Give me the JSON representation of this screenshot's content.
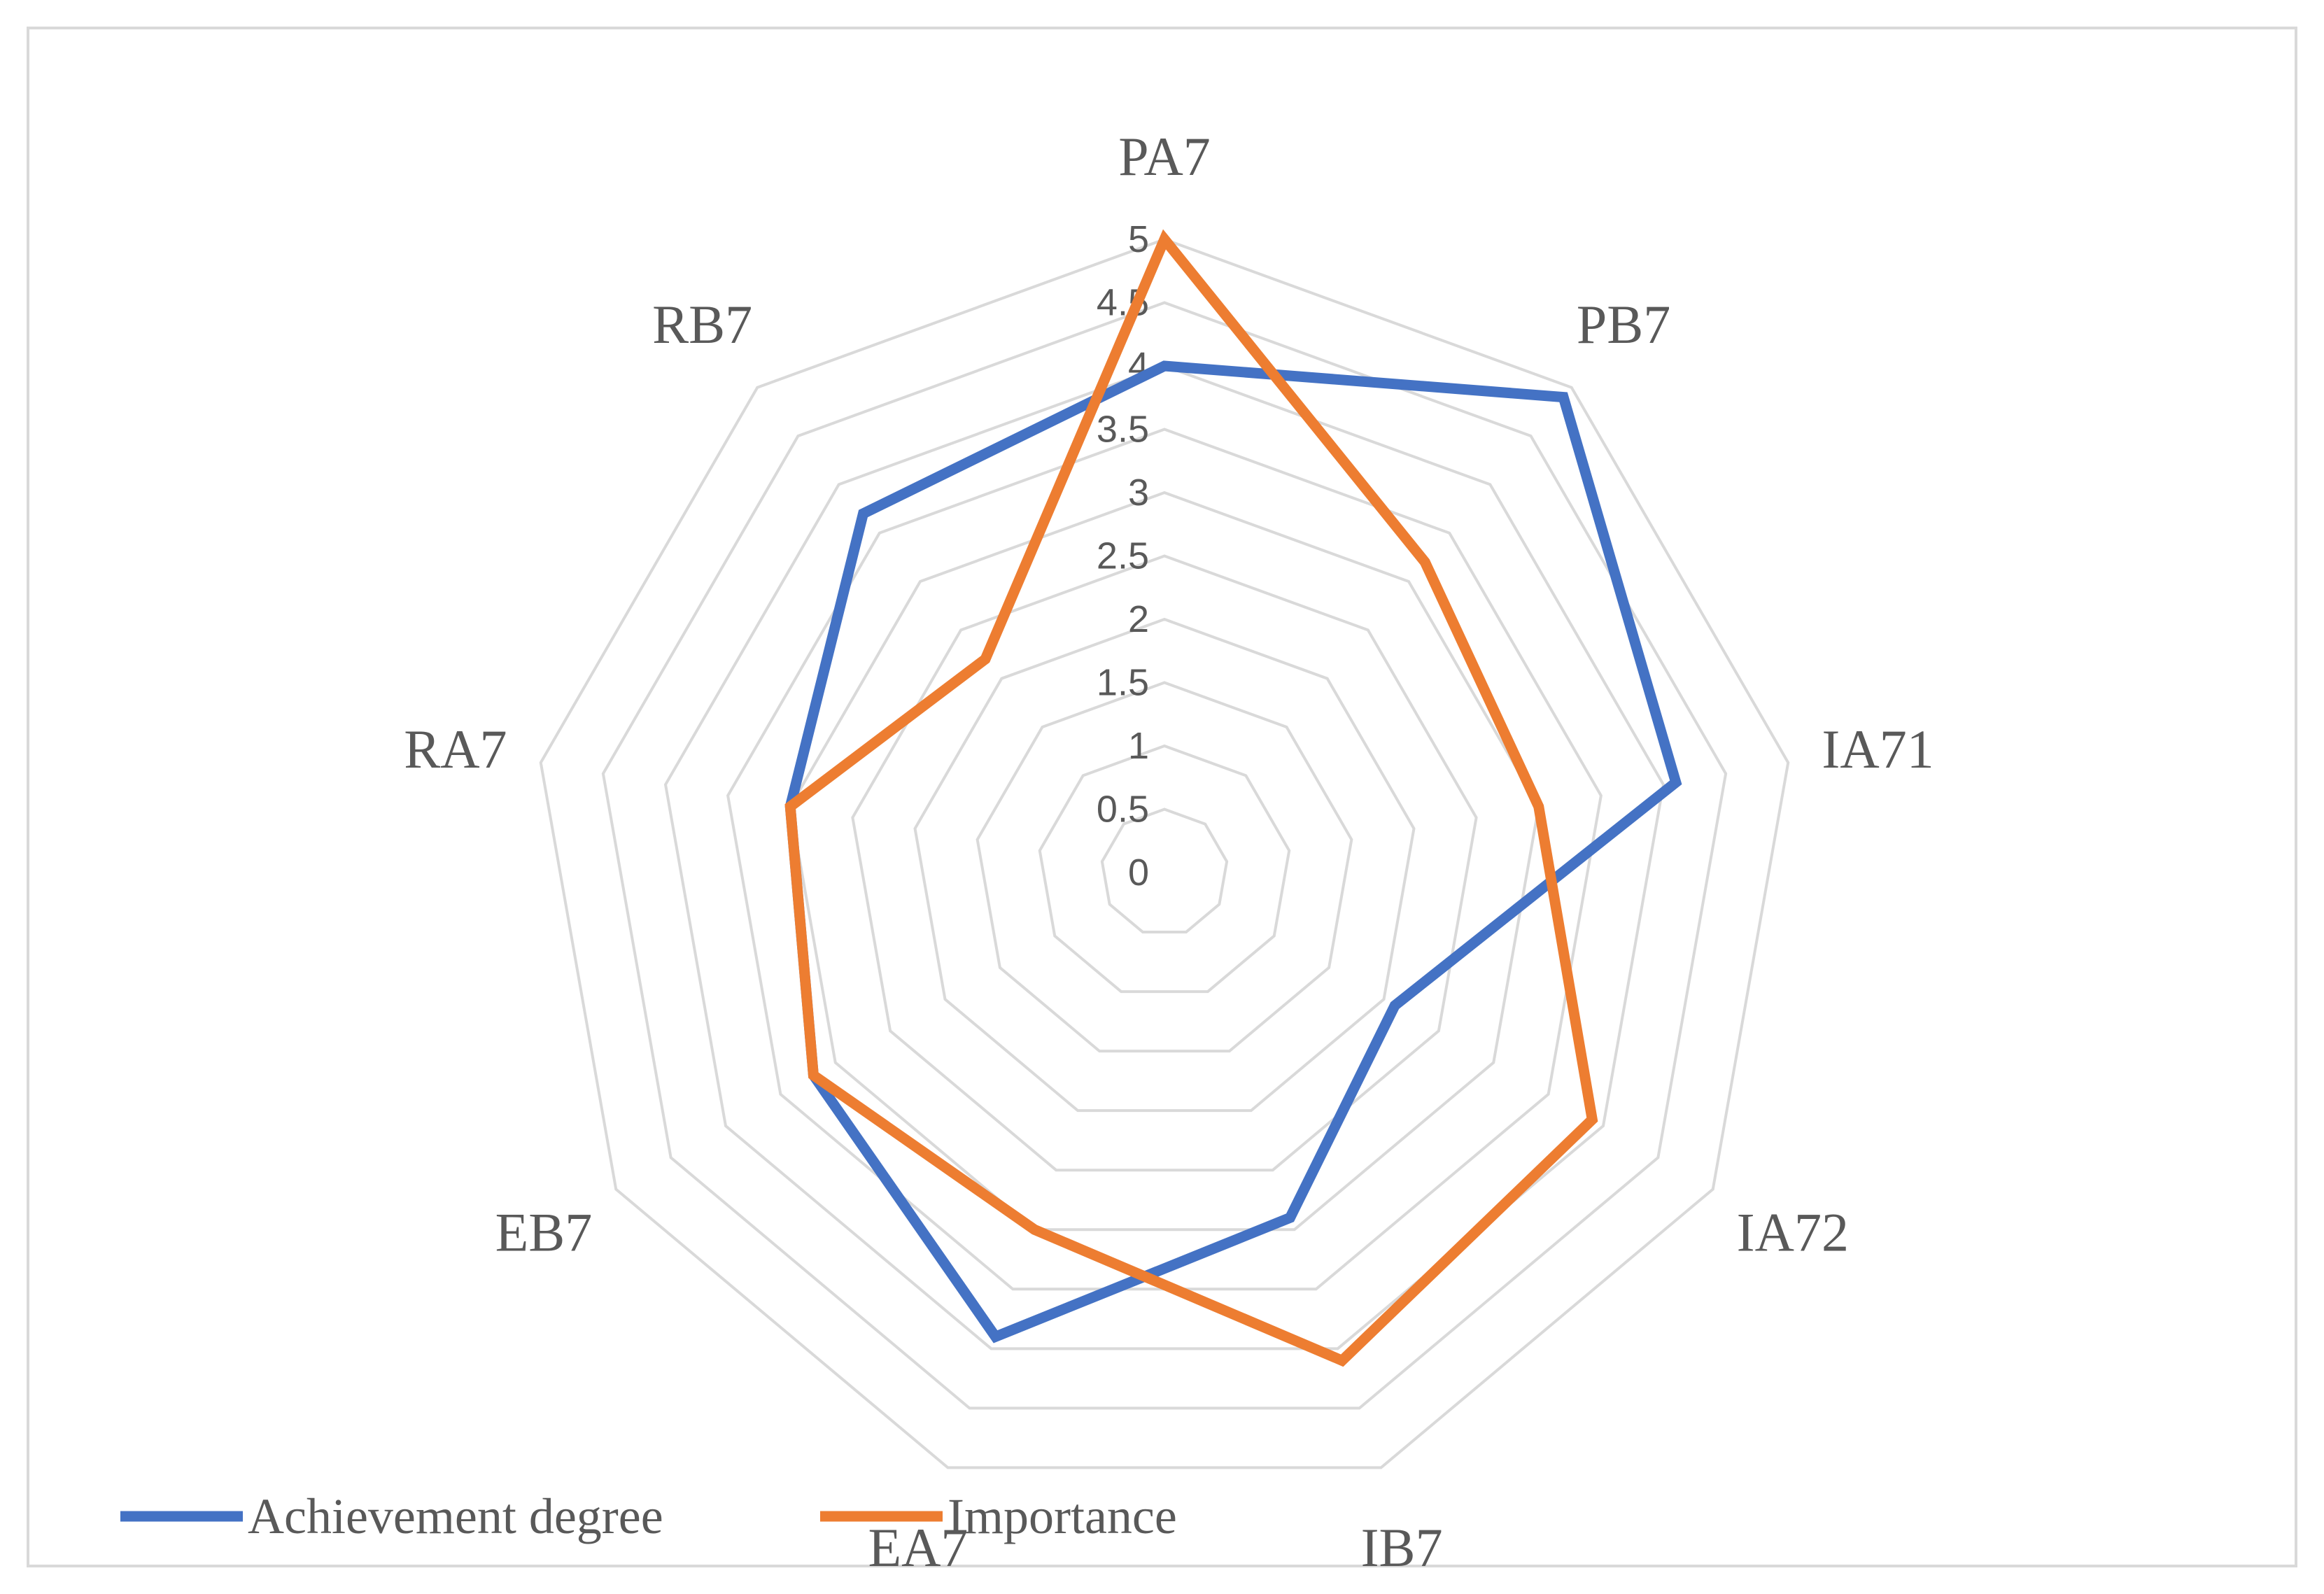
{
  "chart_data": {
    "type": "radar",
    "title": "",
    "categories": [
      "PA7",
      "PB7",
      "IA71",
      "IA72",
      "IB7",
      "EA7",
      "EB7",
      "RA7",
      "RB7"
    ],
    "r_ticks": [
      "0",
      "0.5",
      "1",
      "1.5",
      "2",
      "2.5",
      "3",
      "3.5",
      "4",
      "4.5",
      "5"
    ],
    "r_range": [
      0,
      5
    ],
    "grid": true,
    "legend_position": "bottom-left",
    "series": [
      {
        "name": "Achievement degree",
        "color": "#4472c4",
        "values": [
          4.0,
          4.9,
          4.1,
          2.1,
          2.9,
          3.9,
          3.2,
          3.0,
          3.7
        ]
      },
      {
        "name": "Importance",
        "color": "#ed7d31",
        "values": [
          5.0,
          3.2,
          3.0,
          3.9,
          4.1,
          3.0,
          3.2,
          3.0,
          2.2
        ]
      }
    ],
    "gridline_color": "#d9d9d9"
  }
}
